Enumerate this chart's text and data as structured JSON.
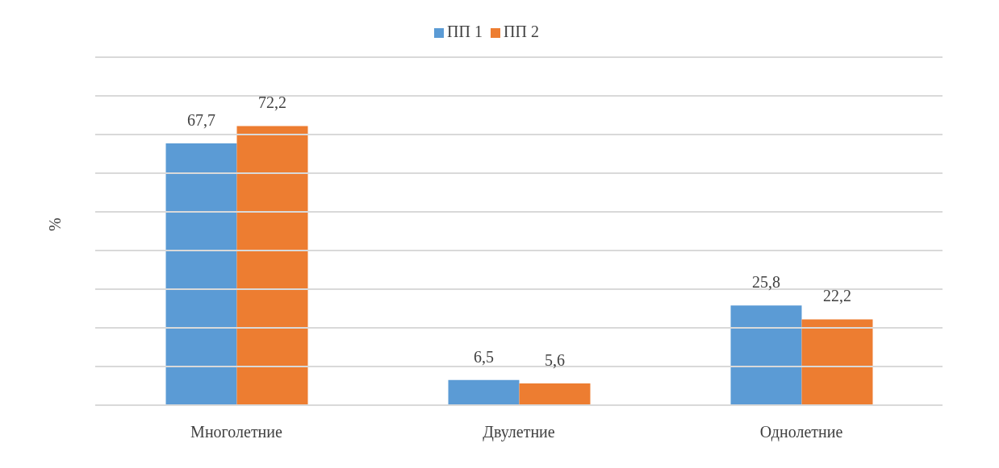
{
  "chart_data": {
    "type": "bar",
    "ylabel": "%",
    "categories": [
      "Многолетние",
      "Двулетние",
      "Однолетние"
    ],
    "series": [
      {
        "name": "ПП 1",
        "color": "#5b9bd5",
        "values": [
          67.7,
          6.5,
          25.8
        ],
        "value_labels": [
          "67,7",
          "6,5",
          "25,8"
        ]
      },
      {
        "name": "ПП 2",
        "color": "#ed7d31",
        "values": [
          72.2,
          5.6,
          22.2
        ],
        "value_labels": [
          "72,2",
          "5,6",
          "22,2"
        ]
      }
    ],
    "ylim": [
      0,
      90
    ],
    "yticks": [
      {
        "value": 0,
        "label": null
      },
      {
        "value": 10,
        "label": null
      },
      {
        "value": 20,
        "label": null
      },
      {
        "value": 30,
        "label": null
      },
      {
        "value": 40,
        "label": null
      },
      {
        "value": 50,
        "label": null
      },
      {
        "value": 60,
        "label": null
      },
      {
        "value": 70,
        "label": null
      },
      {
        "value": 80,
        "label": null
      },
      {
        "value": 90,
        "label": null
      }
    ],
    "grid": "y",
    "legend": "top",
    "tick_labels": "x"
  }
}
